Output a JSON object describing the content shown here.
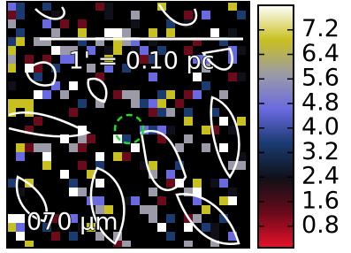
{
  "chart_data": {
    "type": "colorbar",
    "annotations": {
      "scale": "1' = 0.10 pc",
      "band": "070 μm"
    },
    "ylim": [
      0.1,
      8.0
    ],
    "yticks": [
      0.8,
      1.6,
      2.4,
      3.2,
      {
        "value": 4,
        "label": "4.0"
      },
      4.8,
      5.6,
      6.4,
      7.2
    ],
    "colormap": [
      "#e8102a",
      "#6a0a1a",
      "#101018",
      "#1a3a70",
      "#6a6ae0",
      "#9a9aa8",
      "#c8c020",
      "#ffffff"
    ]
  }
}
